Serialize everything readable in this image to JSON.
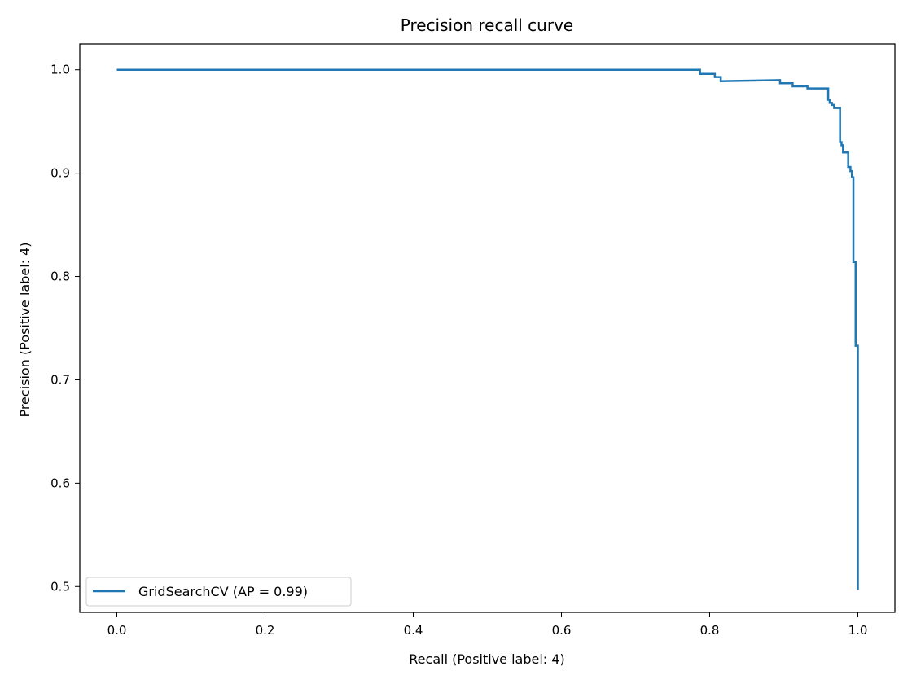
{
  "chart_data": {
    "type": "line",
    "title": "Precision recall curve",
    "xlabel": "Recall (Positive label: 4)",
    "ylabel": "Precision (Positive label: 4)",
    "xlim": [
      -0.05,
      1.05
    ],
    "ylim": [
      0.475,
      1.025
    ],
    "xticks": [
      0.0,
      0.2,
      0.4,
      0.6,
      0.8,
      1.0
    ],
    "xtick_labels": [
      "0.0",
      "0.2",
      "0.4",
      "0.6",
      "0.8",
      "1.0"
    ],
    "yticks": [
      0.5,
      0.6,
      0.7,
      0.8,
      0.9,
      1.0
    ],
    "ytick_labels": [
      "0.5",
      "0.6",
      "0.7",
      "0.8",
      "0.9",
      "1.0"
    ],
    "grid": false,
    "legend_position": "lower-left",
    "series": [
      {
        "name": "GridSearchCV (AP = 0.99)",
        "color": "#1f77b4",
        "step": true,
        "points": [
          [
            0.0,
            1.0
          ],
          [
            0.787,
            1.0
          ],
          [
            0.787,
            0.996
          ],
          [
            0.807,
            0.996
          ],
          [
            0.807,
            0.993
          ],
          [
            0.815,
            0.993
          ],
          [
            0.815,
            0.989
          ],
          [
            0.895,
            0.99
          ],
          [
            0.895,
            0.987
          ],
          [
            0.912,
            0.987
          ],
          [
            0.912,
            0.984
          ],
          [
            0.932,
            0.984
          ],
          [
            0.932,
            0.982
          ],
          [
            0.96,
            0.982
          ],
          [
            0.96,
            0.971
          ],
          [
            0.962,
            0.971
          ],
          [
            0.962,
            0.968
          ],
          [
            0.965,
            0.968
          ],
          [
            0.965,
            0.966
          ],
          [
            0.968,
            0.966
          ],
          [
            0.968,
            0.963
          ],
          [
            0.976,
            0.963
          ],
          [
            0.976,
            0.93
          ],
          [
            0.978,
            0.93
          ],
          [
            0.978,
            0.927
          ],
          [
            0.98,
            0.927
          ],
          [
            0.98,
            0.92
          ],
          [
            0.987,
            0.92
          ],
          [
            0.987,
            0.906
          ],
          [
            0.99,
            0.906
          ],
          [
            0.99,
            0.902
          ],
          [
            0.992,
            0.902
          ],
          [
            0.992,
            0.896
          ],
          [
            0.994,
            0.896
          ],
          [
            0.994,
            0.814
          ],
          [
            0.997,
            0.814
          ],
          [
            0.997,
            0.733
          ],
          [
            1.0,
            0.733
          ],
          [
            1.0,
            0.497
          ]
        ]
      }
    ]
  }
}
